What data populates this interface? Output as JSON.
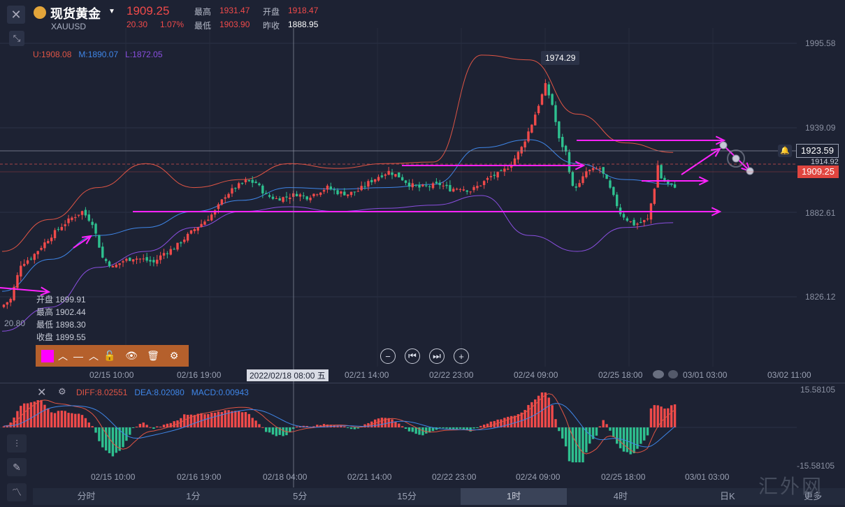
{
  "header": {
    "name": "现货黄金",
    "symbol": "XAUUSD",
    "price": "1909.25",
    "change": "20.30",
    "change_pct": "1.07%",
    "high_label": "最高",
    "high": "1931.47",
    "open_label": "开盘",
    "open": "1918.47",
    "low_label": "最低",
    "low": "1903.90",
    "prev_label": "昨收",
    "prev": "1888.95"
  },
  "boll": {
    "u": "U:1908.08",
    "m": "M:1890.07",
    "l": "L:1872.05"
  },
  "crosshair_ohlc": {
    "open": "开盘 1899.91",
    "high": "最高 1902.44",
    "low": "最低 1898.30",
    "close": "收盘 1899.55",
    "left_value": "20.80"
  },
  "crosshair_time": "2022/02/18 08:00 五",
  "peak_label": "1974.29",
  "price_tags": {
    "line": "1923.59",
    "partial": "1914.92",
    "current": "1909.25"
  },
  "macd": {
    "diff": "DIFF:8.02551",
    "dea": "DEA:8.02080",
    "macd": "MACD:0.00943",
    "top": "15.58105",
    "bottom": "-15.58105"
  },
  "timeframes": [
    "分时",
    "1分",
    "5分",
    "15分",
    "1时",
    "4时",
    "日K",
    "更多"
  ],
  "active_timeframe": "1时",
  "watermark": "汇外网",
  "colors": {
    "up": "#f04a4a",
    "down": "#2ec08f",
    "upper": "#e05545",
    "mid": "#3f86e8",
    "lower": "#8a4fe0",
    "annotation": "#ff22ff"
  },
  "chart_data": {
    "type": "candlestick",
    "ylim": [
      1800,
      2010
    ],
    "y_ticks": [
      "1995.58",
      "1939.09",
      "1882.61",
      "1826.12"
    ],
    "x_ticks": [
      "02/15 10:00",
      "02/16 19:00",
      "02/18 04:00",
      "02/21 14:00",
      "02/22 23:00",
      "02/24 09:00",
      "02/25 18:00",
      "03/01 03:00",
      "03/02 11:00"
    ],
    "x_ticks_main_visible": [
      "02/15 10:00",
      "02/16 19:00",
      "02/21 14:00",
      "02/22 23:00",
      "02/24 09:00",
      "02/25 18:00",
      "03/01 03:00",
      "03/02 11:00"
    ],
    "close_path": [
      [
        0,
        1835
      ],
      [
        3,
        1840
      ],
      [
        6,
        1862
      ],
      [
        9,
        1866
      ],
      [
        12,
        1873
      ],
      [
        15,
        1880
      ],
      [
        18,
        1886
      ],
      [
        21,
        1891
      ],
      [
        24,
        1895
      ],
      [
        27,
        1888
      ],
      [
        30,
        1866
      ],
      [
        33,
        1860
      ],
      [
        36,
        1864
      ],
      [
        39,
        1866
      ],
      [
        42,
        1865
      ],
      [
        45,
        1863
      ],
      [
        48,
        1869
      ],
      [
        51,
        1872
      ],
      [
        54,
        1878
      ],
      [
        57,
        1884
      ],
      [
        60,
        1889
      ],
      [
        63,
        1895
      ],
      [
        66,
        1905
      ],
      [
        69,
        1910
      ],
      [
        72,
        1914
      ],
      [
        75,
        1913
      ],
      [
        78,
        1905
      ],
      [
        81,
        1903
      ],
      [
        84,
        1904
      ],
      [
        87,
        1906
      ],
      [
        90,
        1904
      ],
      [
        93,
        1907
      ],
      [
        96,
        1910
      ],
      [
        99,
        1907
      ],
      [
        102,
        1906
      ],
      [
        105,
        1908
      ],
      [
        108,
        1913
      ],
      [
        111,
        1917
      ],
      [
        114,
        1920
      ],
      [
        117,
        1917
      ],
      [
        120,
        1912
      ],
      [
        123,
        1910
      ],
      [
        126,
        1911
      ],
      [
        129,
        1912
      ],
      [
        132,
        1909
      ],
      [
        135,
        1910
      ],
      [
        138,
        1908
      ],
      [
        141,
        1912
      ],
      [
        144,
        1917
      ],
      [
        147,
        1919
      ],
      [
        150,
        1925
      ],
      [
        153,
        1935
      ],
      [
        156,
        1950
      ],
      [
        159,
        1968
      ],
      [
        160,
        1974
      ],
      [
        162,
        1962
      ],
      [
        164,
        1940
      ],
      [
        166,
        1932
      ],
      [
        168,
        1910
      ],
      [
        170,
        1912
      ],
      [
        172,
        1920
      ],
      [
        174,
        1921
      ],
      [
        176,
        1922
      ],
      [
        178,
        1914
      ],
      [
        180,
        1904
      ],
      [
        182,
        1894
      ],
      [
        184,
        1890
      ],
      [
        186,
        1887
      ],
      [
        188,
        1888
      ],
      [
        190,
        1890
      ],
      [
        192,
        1910
      ],
      [
        193,
        1924
      ],
      [
        194,
        1916
      ],
      [
        196,
        1912
      ],
      [
        198,
        1911
      ]
    ],
    "n_candles": 198,
    "boll_upper": [
      1870,
      1890,
      1910,
      1925,
      1910,
      1915,
      1925,
      1922,
      1925,
      1926,
      1993,
      1990,
      1956,
      1938,
      1932
    ],
    "boll_mid": [
      1845,
      1865,
      1880,
      1885,
      1895,
      1902,
      1910,
      1909,
      1910,
      1912,
      1935,
      1940,
      1925,
      1915,
      1912
    ],
    "boll_lower": [
      1820,
      1835,
      1860,
      1870,
      1885,
      1895,
      1898,
      1895,
      1897,
      1899,
      1905,
      1880,
      1870,
      1885,
      1888
    ],
    "annotations": {
      "horizontal_levels": [
        1886,
        1912,
        1924,
        1935
      ],
      "arrows": 8
    },
    "macd_hist_range": [
      -15.58105,
      15.58105
    ]
  }
}
